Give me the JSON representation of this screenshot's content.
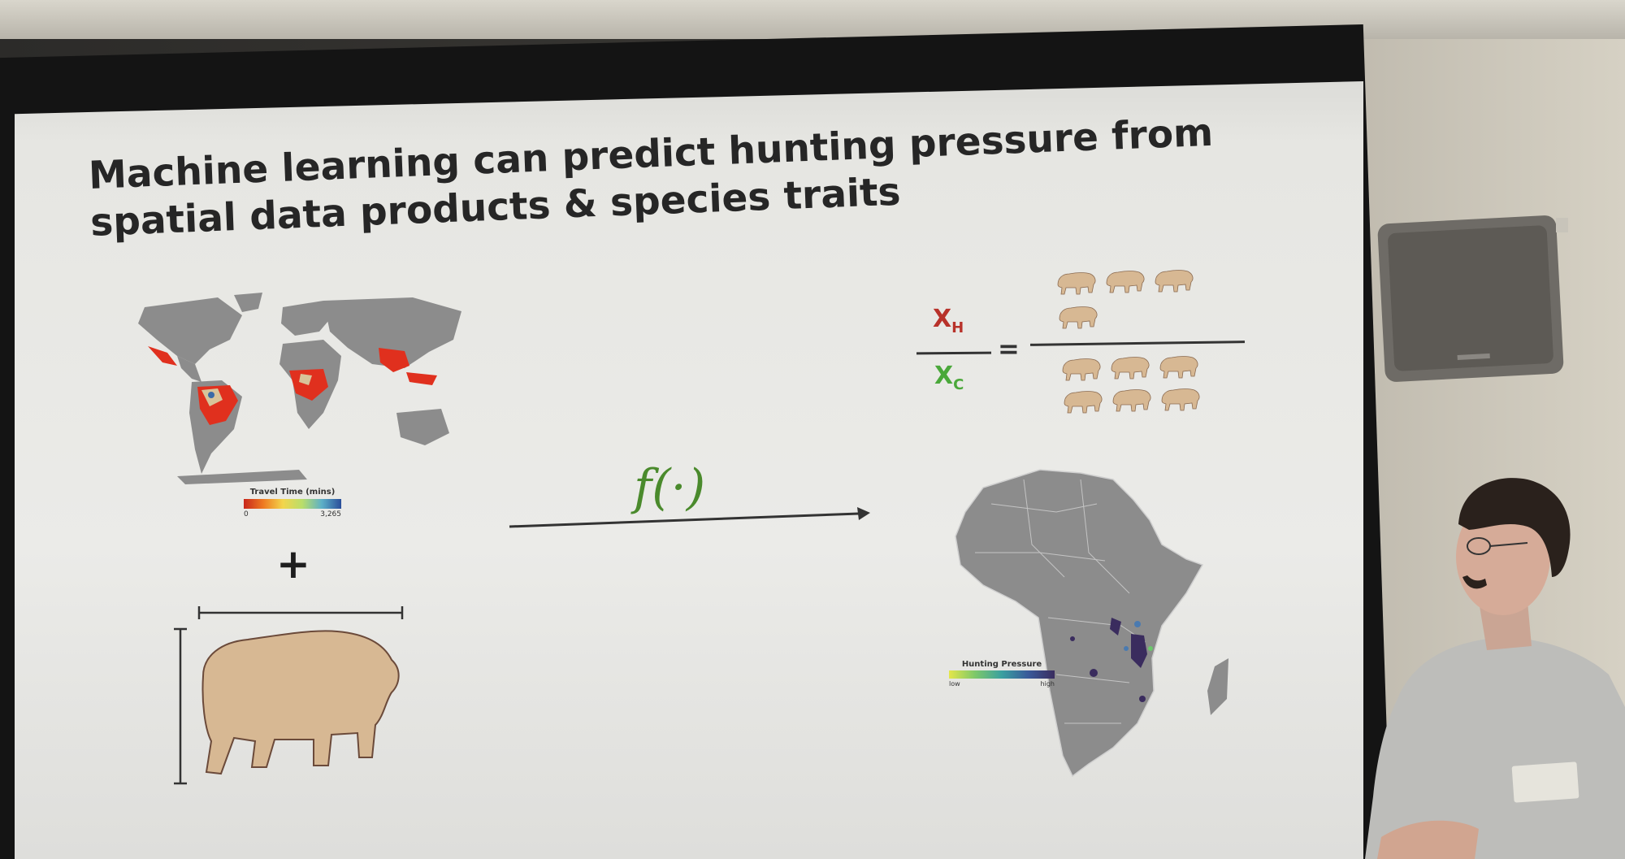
{
  "slide": {
    "title_line1": "Machine learning can predict hunting pressure from",
    "title_line2": "spatial data products & species traits"
  },
  "travel_legend": {
    "label": "Travel Time (mins)",
    "min": "0",
    "max": "3,265"
  },
  "plus": "+",
  "function_label": "f(·)",
  "ratio": {
    "numerator": "X",
    "numerator_sub": "H",
    "denominator": "X",
    "denominator_sub": "C",
    "equals": "="
  },
  "hunting_legend": {
    "label": "Hunting Pressure",
    "low": "low",
    "high": "high"
  },
  "colors": {
    "numerator": "#b8322a",
    "denominator": "#4aa83a",
    "function": "#4a8a2c",
    "bison_fill": "#d7b893",
    "map_gray": "#8c8c8c",
    "hotspot": "#e0301e"
  }
}
